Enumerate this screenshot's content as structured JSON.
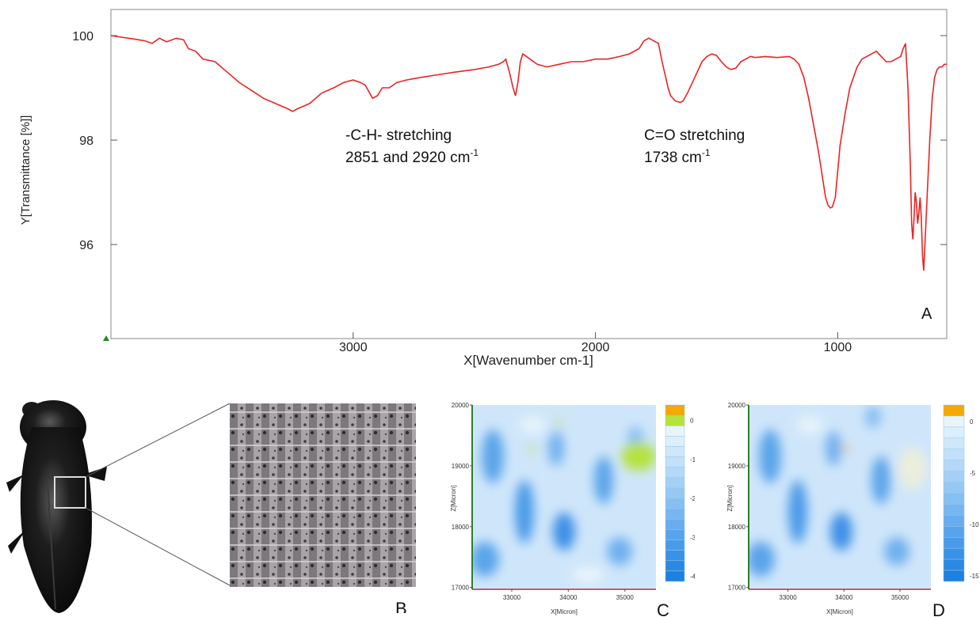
{
  "chart_data": [
    {
      "panel": "A",
      "type": "line",
      "title": "",
      "xlabel": "X[Wavenumber cm-1]",
      "ylabel": "Y[Transmittance [%]]",
      "xlim": [
        4000,
        550
      ],
      "ylim": [
        94.2,
        100.5
      ],
      "x_ticks": [
        3000,
        2000,
        1000
      ],
      "y_ticks": [
        96,
        98,
        100
      ],
      "grid": false,
      "legend": "none",
      "line_color": "#ee2222",
      "series": [
        {
          "x": [
            4000,
            3900,
            3860,
            3830,
            3800,
            3770,
            3730,
            3700,
            3680,
            3650,
            3620,
            3570,
            3520,
            3470,
            3420,
            3370,
            3320,
            3270,
            3250,
            3230,
            3180,
            3130,
            3080,
            3040,
            3000,
            2970,
            2950,
            2920,
            2900,
            2880,
            2851,
            2820,
            2780,
            2720,
            2650,
            2580,
            2500,
            2440,
            2400,
            2380,
            2370,
            2355,
            2340,
            2330,
            2320,
            2310,
            2300,
            2270,
            2240,
            2200,
            2150,
            2100,
            2050,
            2000,
            1950,
            1900,
            1860,
            1820,
            1800,
            1780,
            1760,
            1740,
            1725,
            1710,
            1700,
            1690,
            1670,
            1650,
            1638,
            1620,
            1600,
            1580,
            1560,
            1540,
            1520,
            1500,
            1480,
            1460,
            1440,
            1420,
            1400,
            1380,
            1360,
            1340,
            1300,
            1250,
            1200,
            1180,
            1160,
            1140,
            1120,
            1100,
            1080,
            1070,
            1060,
            1050,
            1040,
            1030,
            1022,
            1010,
            1000,
            990,
            970,
            950,
            920,
            900,
            880,
            860,
            840,
            820,
            800,
            780,
            760,
            740,
            730,
            720,
            710,
            700,
            695,
            690,
            685,
            680,
            675,
            670,
            665,
            660,
            655,
            650,
            645,
            640,
            635,
            630,
            620,
            610,
            600,
            590,
            580,
            570,
            560,
            550
          ],
          "y": [
            100.0,
            99.93,
            99.9,
            99.85,
            99.95,
            99.88,
            99.95,
            99.92,
            99.75,
            99.7,
            99.55,
            99.5,
            99.3,
            99.1,
            98.95,
            98.8,
            98.7,
            98.6,
            98.55,
            98.6,
            98.7,
            98.9,
            99.0,
            99.1,
            99.15,
            99.1,
            99.05,
            98.8,
            98.85,
            99.0,
            99.0,
            99.1,
            99.15,
            99.2,
            99.25,
            99.3,
            99.35,
            99.4,
            99.45,
            99.5,
            99.55,
            99.3,
            99.0,
            98.85,
            99.1,
            99.5,
            99.65,
            99.55,
            99.45,
            99.4,
            99.45,
            99.5,
            99.5,
            99.55,
            99.55,
            99.6,
            99.65,
            99.75,
            99.9,
            99.95,
            99.9,
            99.85,
            99.5,
            99.2,
            99.0,
            98.85,
            98.75,
            98.72,
            98.75,
            98.9,
            99.1,
            99.3,
            99.5,
            99.6,
            99.65,
            99.62,
            99.5,
            99.4,
            99.35,
            99.38,
            99.5,
            99.55,
            99.6,
            99.58,
            99.6,
            99.58,
            99.6,
            99.55,
            99.45,
            99.2,
            98.8,
            98.3,
            97.8,
            97.5,
            97.2,
            96.9,
            96.75,
            96.7,
            96.72,
            96.9,
            97.4,
            97.9,
            98.5,
            99.0,
            99.4,
            99.55,
            99.6,
            99.65,
            99.7,
            99.6,
            99.5,
            99.5,
            99.55,
            99.6,
            99.75,
            99.85,
            99.0,
            97.5,
            96.4,
            96.1,
            96.5,
            97.0,
            96.8,
            96.4,
            96.6,
            96.9,
            96.5,
            95.8,
            95.5,
            96.0,
            96.5,
            97.0,
            98.0,
            98.8,
            99.2,
            99.35,
            99.4,
            99.4,
            99.45,
            99.45
          ]
        }
      ],
      "annotations": [
        {
          "line1": "-C-H- stretching",
          "line2_main": "2851 and 2920 cm",
          "line2_sup": "-1"
        },
        {
          "line1": "C=O stretching",
          "line2_main": "1738 cm",
          "line2_sup": "-1"
        }
      ]
    },
    {
      "panel": "C",
      "type": "heatmap",
      "xlabel": "X[Micron]",
      "ylabel": "Z[Micron]",
      "x_ticks": [
        33000,
        34000,
        35000
      ],
      "y_ticks": [
        17000,
        18000,
        19000,
        20000
      ],
      "colorbar_ticks": [
        0,
        -1,
        -2,
        -3,
        -4
      ],
      "colorbar_colors": [
        "#f5a800",
        "#b5e33a",
        "#e8f4fb",
        "#dcefff",
        "#cfe7fb",
        "#c2e0fa",
        "#b3d8f8",
        "#a5d0f6",
        "#96c8f4",
        "#86bff2",
        "#77b6f0",
        "#68adee",
        "#58a4ec",
        "#489be9",
        "#3892e7",
        "#2a89e4",
        "#1e80e0"
      ]
    },
    {
      "panel": "D",
      "type": "heatmap",
      "xlabel": "X[Micron]",
      "ylabel": "Z[Micron]",
      "x_ticks": [
        33000,
        34000,
        35000
      ],
      "y_ticks": [
        17000,
        18000,
        19000,
        20000
      ],
      "colorbar_ticks": [
        0,
        -5,
        -10,
        -15
      ],
      "colorbar_colors": [
        "#f5a800",
        "#e8f4fb",
        "#dcefff",
        "#cfe7fb",
        "#c2e0fa",
        "#b3d8f8",
        "#a5d0f6",
        "#96c8f4",
        "#86bff2",
        "#77b6f0",
        "#68adee",
        "#58a4ec",
        "#489be9",
        "#3892e7",
        "#2a89e4",
        "#1e80e0"
      ]
    }
  ],
  "panel_labels": {
    "a": "A",
    "b": "B",
    "c": "C",
    "d": "D"
  }
}
